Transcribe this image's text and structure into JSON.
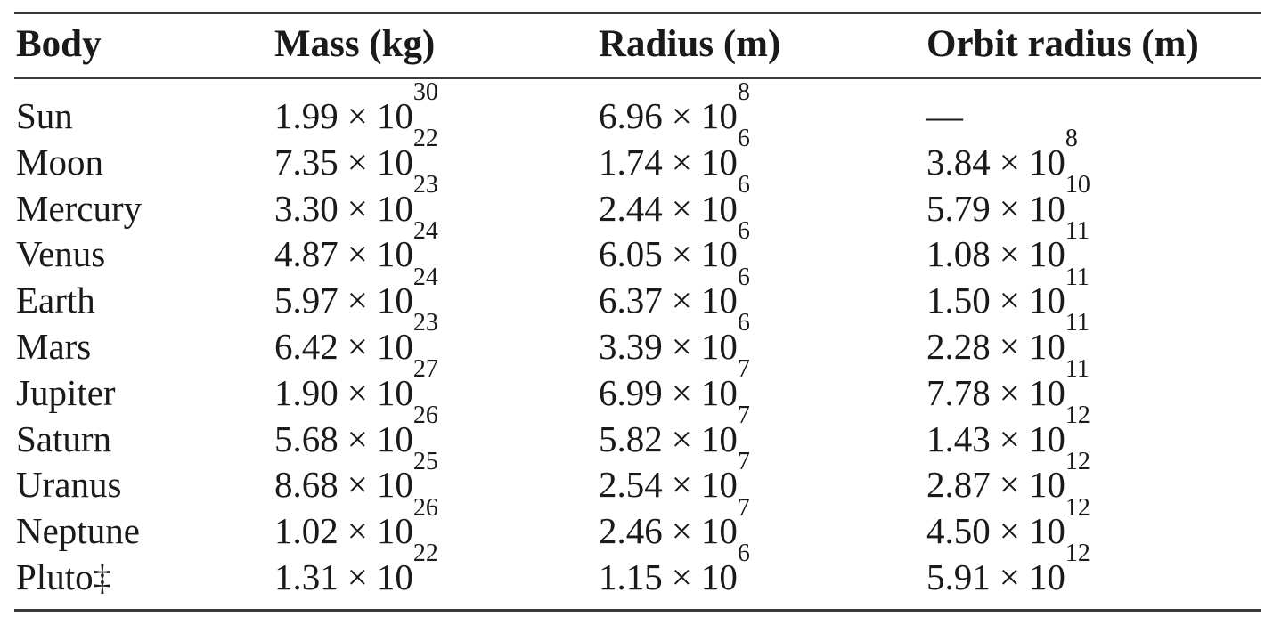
{
  "table": {
    "headers": [
      "Body",
      "Mass (kg)",
      "Radius (m)",
      "Orbit radius (m)"
    ],
    "times_symbol": "×",
    "base": "10",
    "rows": [
      {
        "body": "Sun",
        "mass": {
          "m": "1.99",
          "e": "30"
        },
        "radius": {
          "m": "6.96",
          "e": "8"
        },
        "orbit": {
          "dash": "—"
        }
      },
      {
        "body": "Moon",
        "mass": {
          "m": "7.35",
          "e": "22"
        },
        "radius": {
          "m": "1.74",
          "e": "6"
        },
        "orbit": {
          "m": "3.84",
          "e": "8"
        }
      },
      {
        "body": "Mercury",
        "mass": {
          "m": "3.30",
          "e": "23"
        },
        "radius": {
          "m": "2.44",
          "e": "6"
        },
        "orbit": {
          "m": "5.79",
          "e": "10"
        }
      },
      {
        "body": "Venus",
        "mass": {
          "m": "4.87",
          "e": "24"
        },
        "radius": {
          "m": "6.05",
          "e": "6"
        },
        "orbit": {
          "m": "1.08",
          "e": "11"
        }
      },
      {
        "body": "Earth",
        "mass": {
          "m": "5.97",
          "e": "24"
        },
        "radius": {
          "m": "6.37",
          "e": "6"
        },
        "orbit": {
          "m": "1.50",
          "e": "11"
        }
      },
      {
        "body": "Mars",
        "mass": {
          "m": "6.42",
          "e": "23"
        },
        "radius": {
          "m": "3.39",
          "e": "6"
        },
        "orbit": {
          "m": "2.28",
          "e": "11"
        }
      },
      {
        "body": "Jupiter",
        "mass": {
          "m": "1.90",
          "e": "27"
        },
        "radius": {
          "m": "6.99",
          "e": "7"
        },
        "orbit": {
          "m": "7.78",
          "e": "11"
        }
      },
      {
        "body": "Saturn",
        "mass": {
          "m": "5.68",
          "e": "26"
        },
        "radius": {
          "m": "5.82",
          "e": "7"
        },
        "orbit": {
          "m": "1.43",
          "e": "12"
        }
      },
      {
        "body": "Uranus",
        "mass": {
          "m": "8.68",
          "e": "25"
        },
        "radius": {
          "m": "2.54",
          "e": "7"
        },
        "orbit": {
          "m": "2.87",
          "e": "12"
        }
      },
      {
        "body": "Neptune",
        "mass": {
          "m": "1.02",
          "e": "26"
        },
        "radius": {
          "m": "2.46",
          "e": "7"
        },
        "orbit": {
          "m": "4.50",
          "e": "12"
        }
      },
      {
        "body": "Pluto‡",
        "mass": {
          "m": "1.31",
          "e": "22"
        },
        "radius": {
          "m": "1.15",
          "e": "6"
        },
        "orbit": {
          "m": "5.91",
          "e": "12"
        }
      }
    ]
  }
}
